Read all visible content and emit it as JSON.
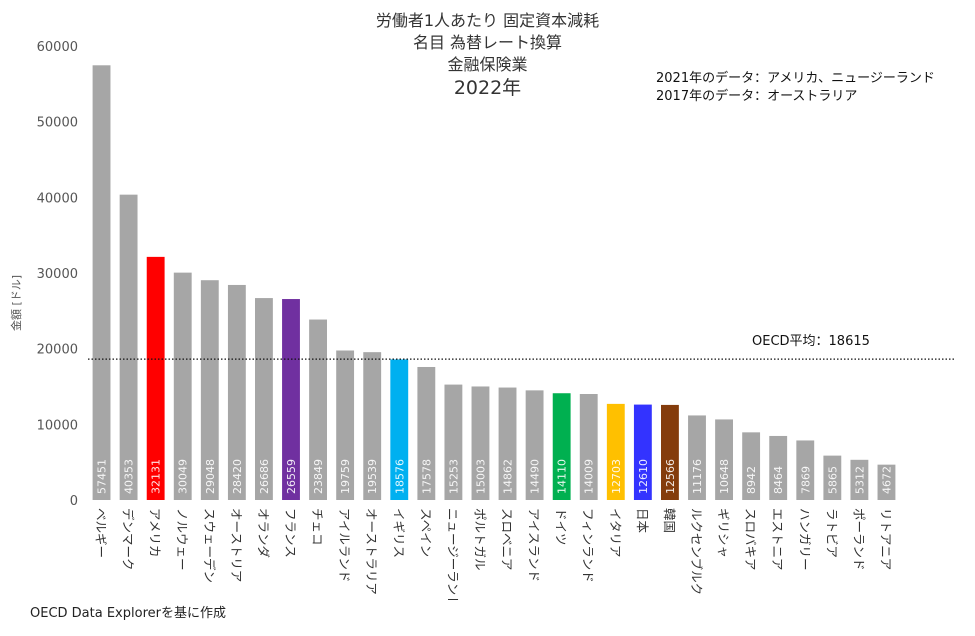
{
  "chart_data": {
    "type": "bar",
    "title": [
      "労働者1人あたり 固定資本減耗",
      "名目 為替レート換算",
      "金融保険業",
      "2022年"
    ],
    "xlabel": "",
    "ylabel": "金額 [ドル]",
    "ylim": [
      0,
      60000
    ],
    "yticks": [
      0,
      10000,
      20000,
      30000,
      40000,
      50000,
      60000
    ],
    "categories": [
      "ベルギー",
      "デンマーク",
      "アメリカ",
      "ノルウェー",
      "スウェーデン",
      "オーストリア",
      "オランダ",
      "フランス",
      "チェコ",
      "アイルランド",
      "オーストラリア",
      "イギリス",
      "スペイン",
      "ニュージーランド",
      "ポルトガル",
      "スロベニア",
      "アイスランド",
      "ドイツ",
      "フィンランド",
      "イタリア",
      "日本",
      "韓国",
      "ルクセンブルク",
      "ギリシャ",
      "スロバキア",
      "エストニア",
      "ハンガリー",
      "ラトビア",
      "ポーランド",
      "リトアニア"
    ],
    "values": [
      57451,
      40353,
      32131,
      30049,
      29048,
      28420,
      26686,
      26559,
      23849,
      19759,
      19539,
      18576,
      17578,
      15253,
      15003,
      14862,
      14490,
      14110,
      14009,
      12703,
      12610,
      12566,
      11176,
      10648,
      8942,
      8464,
      7869,
      5865,
      5312,
      4672
    ],
    "value_labels": [
      "57451",
      "40353",
      "32131",
      "30049",
      "29048",
      "28420",
      "26686",
      "26559",
      "23849",
      "19759",
      "19539",
      "18576",
      "17578",
      "15253",
      "15003",
      "14862",
      "14490",
      "14110",
      "14009",
      "12703",
      "12610",
      "12566",
      "11176",
      "10648",
      "8942",
      "8464",
      "7869",
      "5865",
      "5312",
      "4672"
    ],
    "colors": [
      "#a6a6a6",
      "#a6a6a6",
      "#ff0000",
      "#a6a6a6",
      "#a6a6a6",
      "#a6a6a6",
      "#a6a6a6",
      "#7030a0",
      "#a6a6a6",
      "#a6a6a6",
      "#a6a6a6",
      "#00b0f0",
      "#a6a6a6",
      "#a6a6a6",
      "#a6a6a6",
      "#a6a6a6",
      "#a6a6a6",
      "#00b050",
      "#a6a6a6",
      "#ffc000",
      "#3333ff",
      "#843c0c",
      "#a6a6a6",
      "#a6a6a6",
      "#a6a6a6",
      "#a6a6a6",
      "#a6a6a6",
      "#a6a6a6",
      "#a6a6a6",
      "#a6a6a6"
    ],
    "reference_line": {
      "value": 18615,
      "label": "OECD平均：18615",
      "style": "dotted"
    },
    "grid": false,
    "notes": [
      "2021年のデータ：アメリカ、ニュージーランド",
      "2017年のデータ：オーストラリア"
    ],
    "source": "OECD Data Explorerを基に作成"
  }
}
